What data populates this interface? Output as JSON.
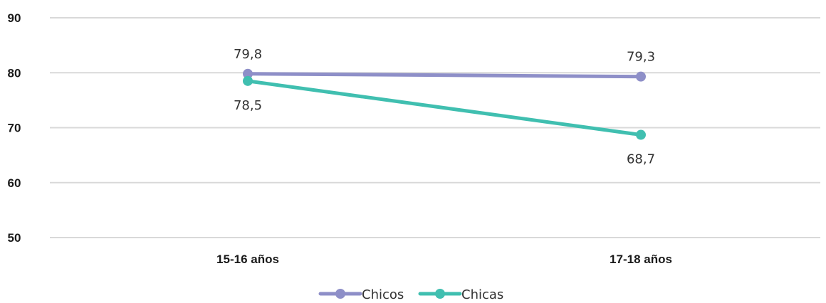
{
  "chart_data": {
    "type": "line",
    "title": "",
    "xlabel": "",
    "ylabel": "",
    "categories": [
      "15-16 años",
      "17-18 años"
    ],
    "ylim": [
      50,
      90
    ],
    "yticks": [
      50,
      60,
      70,
      80,
      90
    ],
    "ytick_labels": [
      "50",
      "60",
      "70",
      "80",
      "90"
    ],
    "grid": true,
    "legend_position": "bottom",
    "series": [
      {
        "name": "Chicos",
        "values": [
          79.8,
          79.3
        ],
        "labels": [
          "79,8",
          "79,3"
        ],
        "label_position": "above",
        "color": "#8e8fc8"
      },
      {
        "name": "Chicas",
        "values": [
          78.5,
          68.7
        ],
        "labels": [
          "78,5",
          "68,7"
        ],
        "label_position": "below",
        "color": "#40bfb0"
      }
    ]
  }
}
